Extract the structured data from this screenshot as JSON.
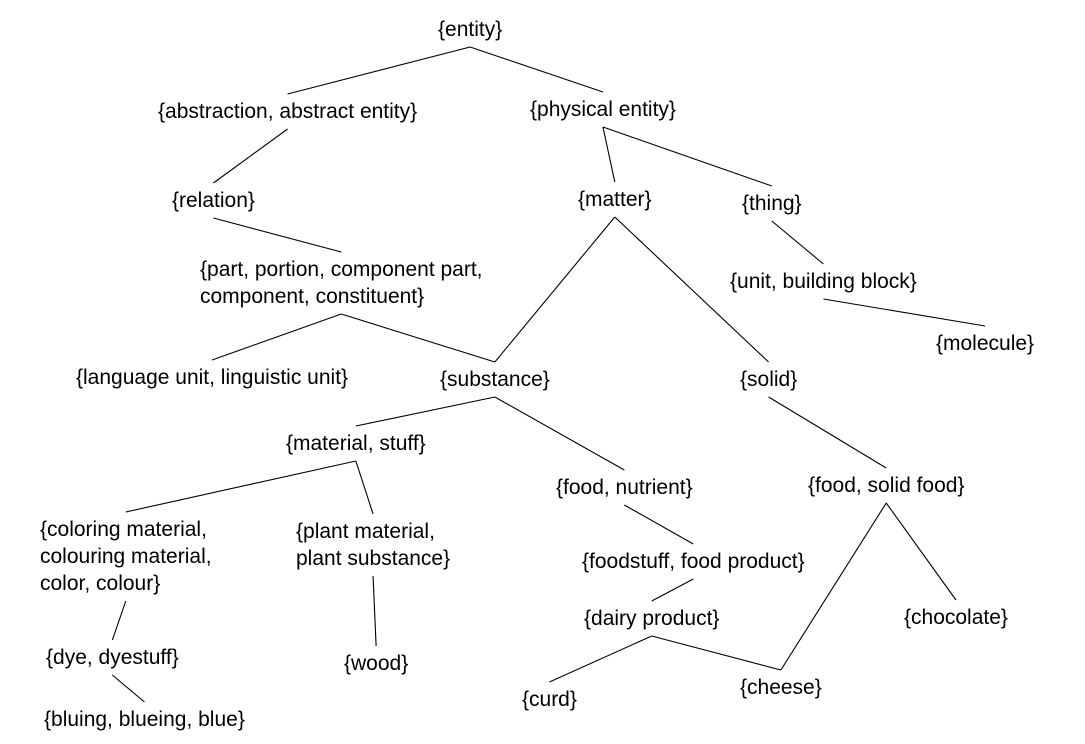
{
  "nodes": {
    "entity": {
      "lines": [
        "{entity}"
      ]
    },
    "abstraction": {
      "lines": [
        "{abstraction, abstract entity}"
      ]
    },
    "physical_entity": {
      "lines": [
        "{physical entity}"
      ]
    },
    "relation": {
      "lines": [
        "{relation}"
      ]
    },
    "matter": {
      "lines": [
        "{matter}"
      ]
    },
    "thing": {
      "lines": [
        "{thing}"
      ]
    },
    "part": {
      "lines": [
        "{part, portion, component part,",
        "component, constituent}"
      ]
    },
    "unit": {
      "lines": [
        "{unit, building block}"
      ]
    },
    "molecule": {
      "lines": [
        "{molecule}"
      ]
    },
    "language_unit": {
      "lines": [
        "{language unit, linguistic unit}"
      ]
    },
    "substance": {
      "lines": [
        "{substance}"
      ]
    },
    "solid": {
      "lines": [
        "{solid}"
      ]
    },
    "material": {
      "lines": [
        "{material, stuff}"
      ]
    },
    "food_nutrient": {
      "lines": [
        "{food, nutrient}"
      ]
    },
    "food_solid": {
      "lines": [
        "{food, solid food}"
      ]
    },
    "coloring": {
      "lines": [
        "{coloring material,",
        "colouring material,",
        "color, colour}"
      ]
    },
    "plant": {
      "lines": [
        "{plant material,",
        "plant substance}"
      ]
    },
    "foodstuff": {
      "lines": [
        "{foodstuff, food product}"
      ]
    },
    "dairy": {
      "lines": [
        "{dairy product}"
      ]
    },
    "chocolate": {
      "lines": [
        "{chocolate}"
      ]
    },
    "dye": {
      "lines": [
        "{dye, dyestuff}"
      ]
    },
    "wood": {
      "lines": [
        "{wood}"
      ]
    },
    "curd": {
      "lines": [
        "{curd}"
      ]
    },
    "cheese": {
      "lines": [
        "{cheese}"
      ]
    },
    "bluing": {
      "lines": [
        "{bluing, blueing, blue}"
      ]
    }
  },
  "edges": [
    [
      "entity",
      "abstraction"
    ],
    [
      "entity",
      "physical_entity"
    ],
    [
      "abstraction",
      "relation"
    ],
    [
      "relation",
      "part"
    ],
    [
      "part",
      "language_unit"
    ],
    [
      "part",
      "substance"
    ],
    [
      "physical_entity",
      "matter"
    ],
    [
      "physical_entity",
      "thing"
    ],
    [
      "thing",
      "unit"
    ],
    [
      "unit",
      "molecule"
    ],
    [
      "matter",
      "substance"
    ],
    [
      "matter",
      "solid"
    ],
    [
      "substance",
      "material"
    ],
    [
      "substance",
      "food_nutrient"
    ],
    [
      "material",
      "coloring"
    ],
    [
      "material",
      "plant"
    ],
    [
      "coloring",
      "dye"
    ],
    [
      "dye",
      "bluing"
    ],
    [
      "plant",
      "wood"
    ],
    [
      "food_nutrient",
      "foodstuff"
    ],
    [
      "foodstuff",
      "dairy"
    ],
    [
      "dairy",
      "curd"
    ],
    [
      "dairy",
      "cheese"
    ],
    [
      "solid",
      "food_solid"
    ],
    [
      "food_solid",
      "cheese"
    ],
    [
      "food_solid",
      "chocolate"
    ]
  ]
}
